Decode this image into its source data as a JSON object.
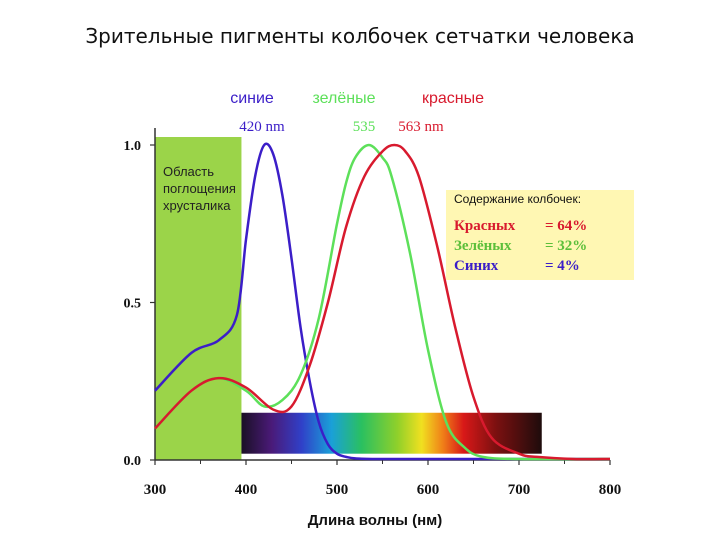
{
  "slide_title": "Зрительные пигменты колбочек сетчатки человека",
  "chart_data": {
    "type": "line",
    "xlabel": "Длина волны (нм)",
    "x_ticks": [
      300,
      400,
      500,
      600,
      700,
      800
    ],
    "y_ticks": [
      "0.0",
      "0.5",
      "1.0"
    ],
    "xlim": [
      300,
      800
    ],
    "ylim": [
      0,
      1.0
    ],
    "grid": false,
    "legend_position": "top",
    "series": [
      {
        "name": "синие",
        "color": "#3b1ec8",
        "x": [
          300,
          340,
          370,
          390,
          400,
          410,
          420,
          430,
          440,
          450,
          460,
          470,
          480,
          490,
          500,
          510,
          520,
          540,
          560,
          600,
          800
        ],
        "values": [
          0.22,
          0.34,
          0.38,
          0.46,
          0.7,
          0.9,
          1.0,
          0.97,
          0.84,
          0.64,
          0.42,
          0.25,
          0.12,
          0.05,
          0.02,
          0.01,
          0.005,
          0.0,
          0.0,
          0.0,
          0.0
        ]
      },
      {
        "name": "зелёные",
        "color": "#5de05a",
        "x": [
          300,
          340,
          370,
          400,
          420,
          440,
          460,
          480,
          500,
          510,
          520,
          535,
          550,
          560,
          580,
          600,
          620,
          640,
          660,
          700,
          800
        ],
        "values": [
          0.1,
          0.22,
          0.26,
          0.22,
          0.17,
          0.19,
          0.27,
          0.45,
          0.75,
          0.88,
          0.96,
          1.0,
          0.96,
          0.9,
          0.66,
          0.35,
          0.12,
          0.04,
          0.01,
          0.0,
          0.0
        ]
      },
      {
        "name": "красные",
        "color": "#d81a2e",
        "x": [
          300,
          340,
          370,
          400,
          430,
          450,
          470,
          490,
          510,
          530,
          550,
          563,
          575,
          590,
          610,
          630,
          650,
          670,
          700,
          720,
          760,
          800
        ],
        "values": [
          0.1,
          0.22,
          0.26,
          0.23,
          0.16,
          0.17,
          0.3,
          0.5,
          0.74,
          0.9,
          0.98,
          1.0,
          0.98,
          0.9,
          0.68,
          0.42,
          0.2,
          0.07,
          0.02,
          0.01,
          0.0,
          0.0
        ]
      }
    ],
    "peak_labels": [
      {
        "text": "420 nm",
        "x": 420,
        "color": "#3b1ec8"
      },
      {
        "text": "535",
        "x": 535,
        "color": "#5de05a"
      },
      {
        "text": "563 nm",
        "x": 563,
        "color": "#d81a2e"
      }
    ],
    "lens_region": {
      "x_range": [
        300,
        395
      ],
      "label": [
        "Область",
        "поглощения",
        "хрусталика"
      ],
      "color": "#9bd449"
    },
    "spectrum_band": {
      "x_range": [
        395,
        725
      ],
      "y_range": [
        0.02,
        0.15
      ]
    },
    "info_box": {
      "title": "Содержание колбочек:",
      "rows": [
        {
          "name": "Красных",
          "value": "= 64%",
          "color": "#d81a2e"
        },
        {
          "name": "Зелёных",
          "value": "= 32%",
          "color": "#5cbf3a"
        },
        {
          "name": "Синих",
          "value": "= 4%",
          "color": "#3b1ec8"
        }
      ]
    }
  }
}
